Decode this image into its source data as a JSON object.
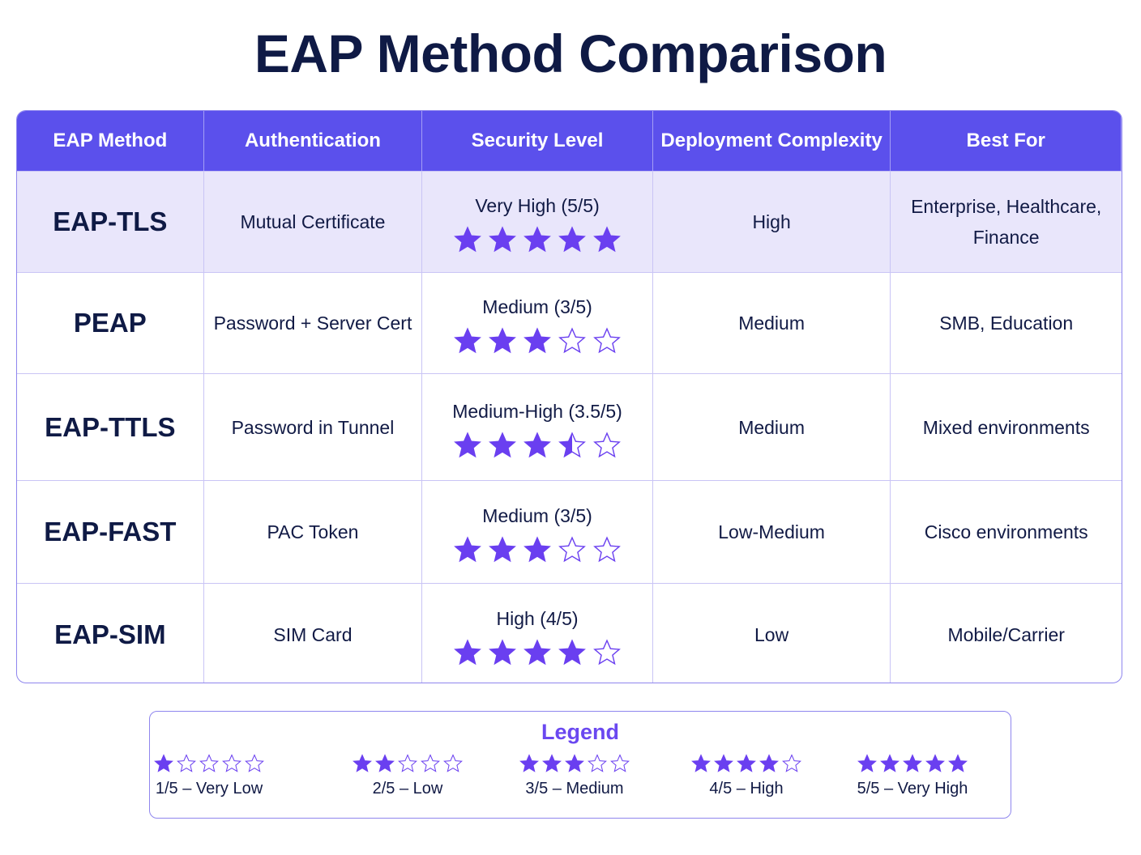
{
  "title": "EAP Method Comparison",
  "colors": {
    "header": "#5b50ec",
    "highlight_row": "#e9e6fb",
    "star": "#6a3ff0",
    "title": "#0f1a45"
  },
  "table": {
    "headers": [
      "EAP Method",
      "Authentication",
      "Security Level",
      "Deployment Complexity",
      "Best For"
    ],
    "rows": [
      {
        "method": "EAP-TLS",
        "auth": "Mutual Certificate",
        "security": "Very High (5/5)",
        "rating": 5,
        "complexity": "High",
        "best_for": "Enterprise, Healthcare, Finance"
      },
      {
        "method": "PEAP",
        "auth": "Password + Server Cert",
        "security": "Medium (3/5)",
        "rating": 3,
        "complexity": "Medium",
        "best_for": "SMB, Education"
      },
      {
        "method": "EAP-TTLS",
        "auth": "Password in Tunnel",
        "security": "Medium-High (3.5/5)",
        "rating": 3.5,
        "complexity": "Medium",
        "best_for": "Mixed environments"
      },
      {
        "method": "EAP-FAST",
        "auth": "PAC Token",
        "security": "Medium (3/5)",
        "rating": 3,
        "complexity": "Low-Medium",
        "best_for": "Cisco environments"
      },
      {
        "method": "EAP-SIM",
        "auth": "SIM Card",
        "security": "High (4/5)",
        "rating": 4,
        "complexity": "Low",
        "best_for": "Mobile/Carrier"
      }
    ]
  },
  "legend": {
    "title": "Legend",
    "items": [
      {
        "label": "1/5 – Very Low",
        "rating": 1
      },
      {
        "label": "2/5 – Low",
        "rating": 2
      },
      {
        "label": "3/5 – Medium",
        "rating": 3
      },
      {
        "label": "4/5 – High",
        "rating": 4
      },
      {
        "label": "5/5 – Very High",
        "rating": 5
      }
    ]
  }
}
